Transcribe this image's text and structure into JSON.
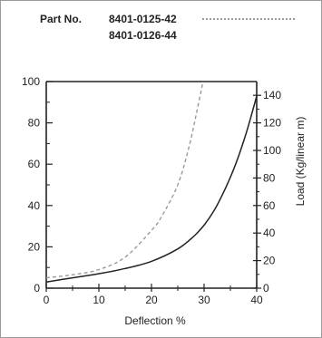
{
  "legend": {
    "label": "Part No.",
    "items": [
      {
        "name": "8401-0125-42",
        "style": "dashed",
        "color": "#9a9a9a"
      },
      {
        "name": "8401-0126-44",
        "style": "solid",
        "color": "#222222"
      }
    ]
  },
  "chart_data": {
    "type": "line",
    "title": "",
    "xlabel": "Deflection %",
    "ylabel": "",
    "y2label": "Load (Kg/linear m)",
    "xlim": [
      0,
      40
    ],
    "ylim": [
      0,
      100
    ],
    "y2lim": [
      0,
      150
    ],
    "x_ticks": [
      0,
      10,
      20,
      30,
      40
    ],
    "y_ticks": [
      0,
      20,
      40,
      60,
      80,
      100
    ],
    "y2_ticks": [
      0,
      20,
      40,
      60,
      80,
      100,
      120,
      140
    ],
    "grid": false,
    "legend_position": "top",
    "series": [
      {
        "name": "8401-0125-42",
        "style": "dashed",
        "color": "#9a9a9a",
        "x": [
          0,
          5,
          10,
          15,
          20,
          22,
          25,
          27,
          28.5,
          29.8
        ],
        "y": [
          5,
          6.5,
          9,
          15,
          28,
          35,
          50,
          67,
          84,
          100
        ]
      },
      {
        "name": "8401-0126-44",
        "style": "solid",
        "color": "#222222",
        "x": [
          0,
          5,
          10,
          15,
          20,
          25,
          28,
          30,
          32,
          34,
          36,
          38,
          40
        ],
        "y": [
          3,
          5,
          7,
          9.5,
          13,
          19,
          25,
          30.5,
          38,
          48,
          60,
          75,
          93
        ]
      }
    ]
  }
}
